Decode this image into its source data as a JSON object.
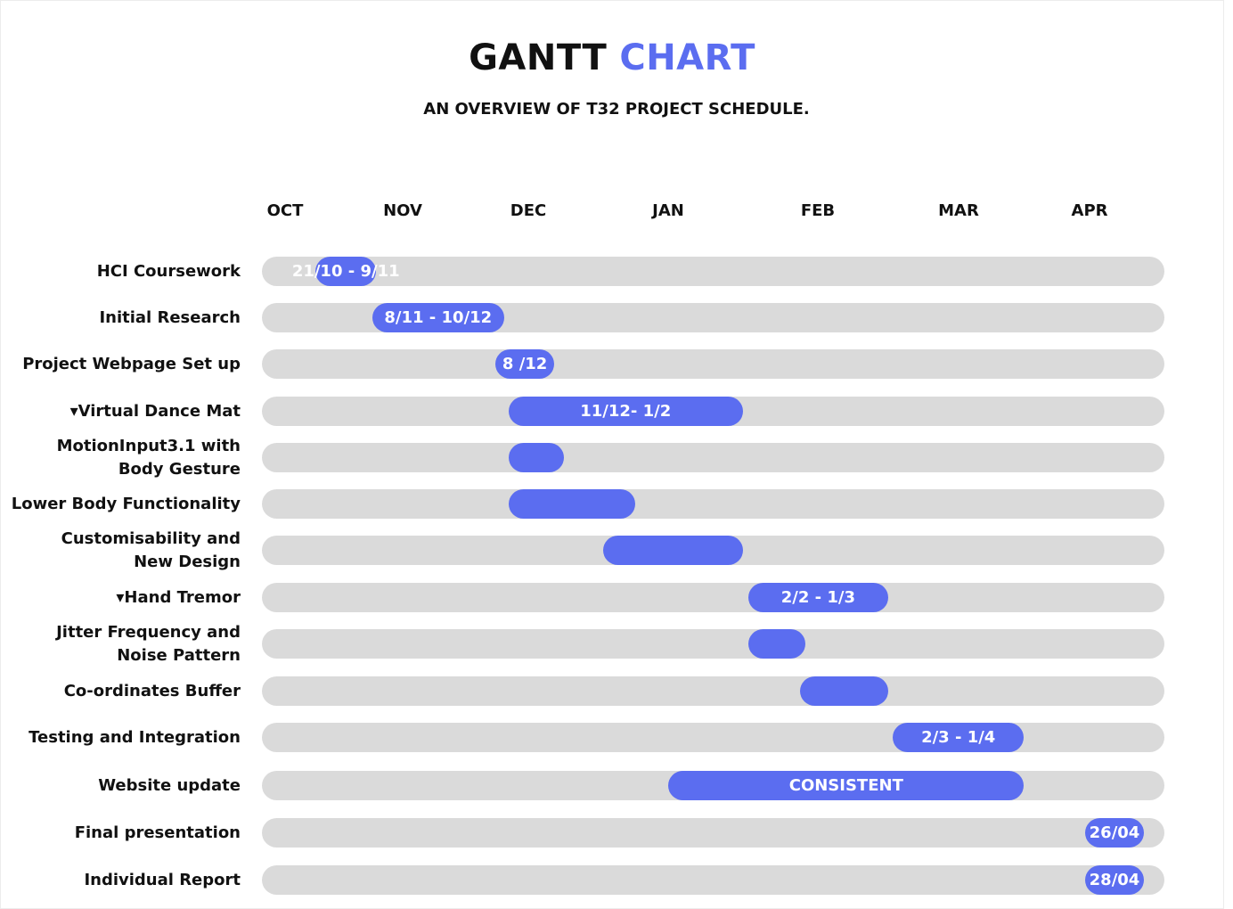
{
  "header": {
    "title_part1": "GANTT",
    "title_part2": "CHART",
    "subtitle": "AN OVERVIEW OF T32 PROJECT SCHEDULE."
  },
  "colors": {
    "accent": "#5b6df0",
    "track": "#dadada",
    "text": "#111111"
  },
  "chart_data": {
    "type": "gantt",
    "x_axis_months": [
      "OCT",
      "NOV",
      "DEC",
      "JAN",
      "FEB",
      "MAR",
      "APR"
    ],
    "tasks": [
      {
        "label": "HCI Coursework",
        "start": "21/10",
        "end": "9/11",
        "bar_text": "21/10 - 9/11"
      },
      {
        "label": "Initial Research",
        "start": "8/11",
        "end": "10/12",
        "bar_text": "8/11 - 10/12"
      },
      {
        "label": "Project Webpage Set up",
        "start": "8/12",
        "end": "8/12",
        "bar_text": "8 /12"
      },
      {
        "label": "▾Virtual Dance Mat",
        "start": "11/12",
        "end": "1/2",
        "bar_text": "11/12- 1/2"
      },
      {
        "label": "MotionInput3.1 with\nBody Gesture",
        "start": "11/12",
        "end": "24/12",
        "bar_text": ""
      },
      {
        "label": "Lower Body Functionality",
        "start": "11/12",
        "end": "9/1",
        "bar_text": ""
      },
      {
        "label": "Customisability and\nNew Design",
        "start": "2/1",
        "end": "1/2",
        "bar_text": ""
      },
      {
        "label": "▾Hand Tremor",
        "start": "2/2",
        "end": "1/3",
        "bar_text": "2/2 - 1/3"
      },
      {
        "label": "Jitter Frequency and\nNoise Pattern",
        "start": "2/2",
        "end": "13/2",
        "bar_text": ""
      },
      {
        "label": "Co-ordinates Buffer",
        "start": "12/2",
        "end": "1/3",
        "bar_text": ""
      },
      {
        "label": "Testing and Integration",
        "start": "2/3",
        "end": "1/4",
        "bar_text": "2/3 - 1/4"
      },
      {
        "label": "Website update",
        "start": "16/1",
        "end": "1/4",
        "bar_text": "CONSISTENT"
      },
      {
        "label": "Final presentation",
        "start": "26/04",
        "end": "26/04",
        "bar_text": "26/04"
      },
      {
        "label": "Individual Report",
        "start": "28/04",
        "end": "28/04",
        "bar_text": "28/04"
      }
    ]
  }
}
